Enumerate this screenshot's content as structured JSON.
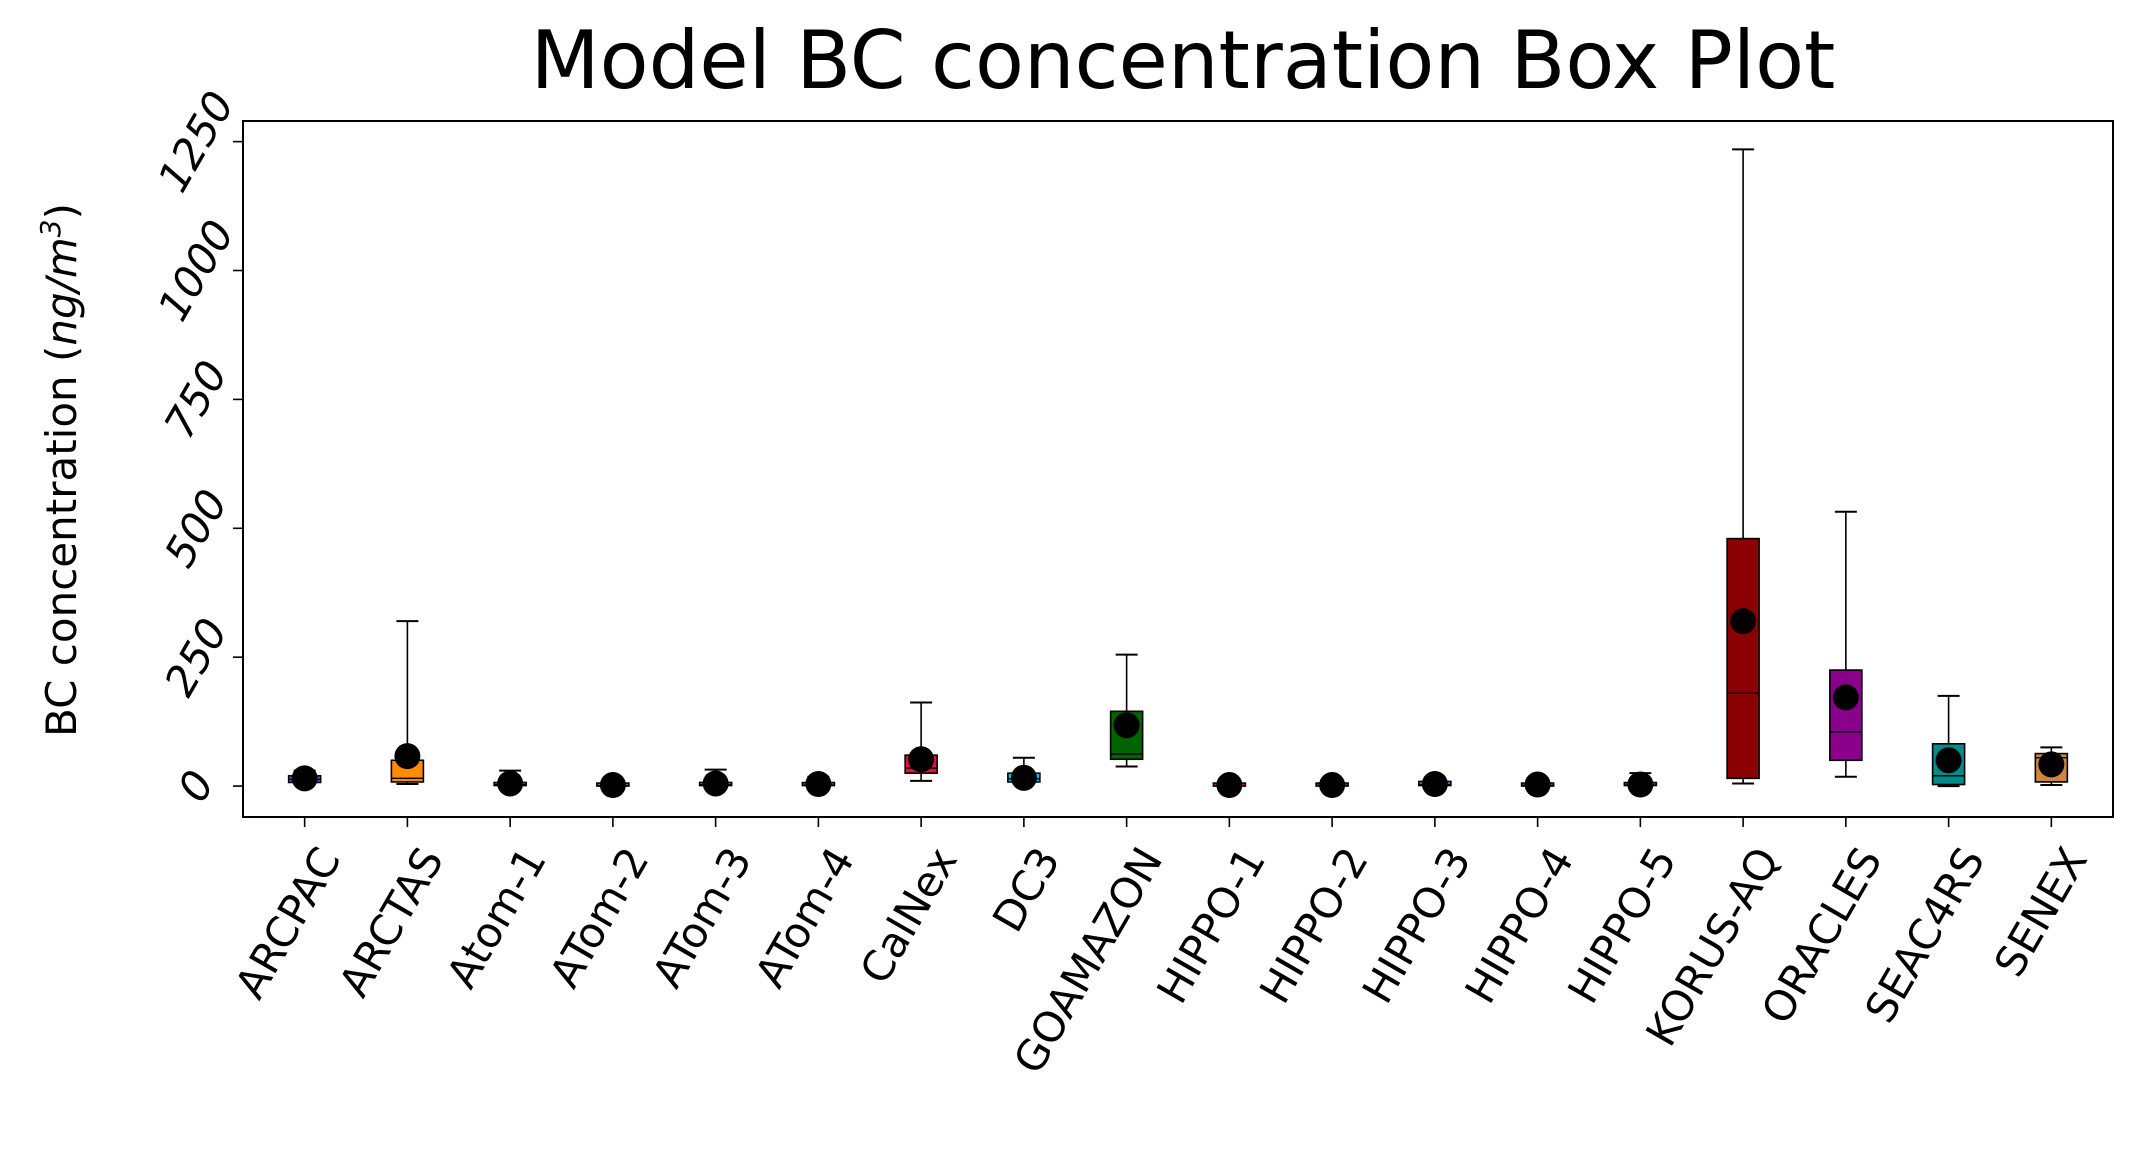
{
  "chart_data": {
    "type": "box",
    "title": "Model BC concentration Box Plot",
    "xlabel": "",
    "ylabel": "BC concentration (ng/m³)",
    "ylabel_parts": {
      "text": "BC concentration (",
      "unit_main": "ng/m",
      "unit_sup": "3",
      "close": ")"
    },
    "ylim": [
      -60,
      1290
    ],
    "yticks": [
      0,
      250,
      500,
      750,
      1000,
      1250
    ],
    "ytick_labels": [
      "0",
      "250",
      "500",
      "750",
      "1000",
      "1250"
    ],
    "grid": false,
    "categories": [
      "ARCPAC",
      "ARCTAS",
      "Atom-1",
      "ATom-2",
      "ATom-3",
      "ATom-4",
      "CalNex",
      "DC3",
      "GOAMAZON",
      "HIPPO-1",
      "HIPPO-2",
      "HIPPO-3",
      "HIPPO-4",
      "HIPPO-5",
      "KORUS-AQ",
      "ORACLES",
      "SEAC4RS",
      "SENEX"
    ],
    "boxes": [
      {
        "category": "ARCPAC",
        "whislo": 4,
        "q1": 7,
        "med": 13,
        "q3": 20,
        "whishi": 30,
        "mean": 15,
        "color": "#4169e1"
      },
      {
        "category": "ARCTAS",
        "whislo": 4,
        "q1": 8,
        "med": 15,
        "q3": 50,
        "whishi": 320,
        "mean": 58,
        "color": "#ff8c00"
      },
      {
        "category": "Atom-1",
        "whislo": 0,
        "q1": 1,
        "med": 3,
        "q3": 7,
        "whishi": 30,
        "mean": 5,
        "color": "#20b2aa"
      },
      {
        "category": "ATom-2",
        "whislo": 0,
        "q1": 0,
        "med": 1,
        "q3": 3,
        "whishi": 8,
        "mean": 2,
        "color": "#9370db"
      },
      {
        "category": "ATom-3",
        "whislo": 0,
        "q1": 1,
        "med": 3,
        "q3": 7,
        "whishi": 32,
        "mean": 5,
        "color": "#cd853f"
      },
      {
        "category": "ATom-4",
        "whislo": 0,
        "q1": 1,
        "med": 2,
        "q3": 6,
        "whishi": 18,
        "mean": 4,
        "color": "#808000"
      },
      {
        "category": "CalNex",
        "whislo": 10,
        "q1": 25,
        "med": 35,
        "q3": 60,
        "whishi": 162,
        "mean": 52,
        "color": "#dc143c"
      },
      {
        "category": "DC3",
        "whislo": 5,
        "q1": 8,
        "med": 14,
        "q3": 25,
        "whishi": 55,
        "mean": 16,
        "color": "#00bfff"
      },
      {
        "category": "GOAMAZON",
        "whislo": 38,
        "q1": 52,
        "med": 62,
        "q3": 145,
        "whishi": 255,
        "mean": 118,
        "color": "#006400"
      },
      {
        "category": "HIPPO-1",
        "whislo": 0,
        "q1": 0,
        "med": 1,
        "q3": 3,
        "whishi": 14,
        "mean": 2,
        "color": "#ff1493"
      },
      {
        "category": "HIPPO-2",
        "whislo": 0,
        "q1": 0,
        "med": 1,
        "q3": 3,
        "whishi": 10,
        "mean": 2,
        "color": "#8b4513"
      },
      {
        "category": "HIPPO-3",
        "whislo": 0,
        "q1": 1,
        "med": 3,
        "q3": 9,
        "whishi": 16,
        "mean": 4,
        "color": "#1e90ff"
      },
      {
        "category": "HIPPO-4",
        "whislo": 0,
        "q1": 0,
        "med": 2,
        "q3": 4,
        "whishi": 12,
        "mean": 3,
        "color": "#ffd700"
      },
      {
        "category": "HIPPO-5",
        "whislo": 0,
        "q1": 1,
        "med": 2,
        "q3": 5,
        "whishi": 25,
        "mean": 3,
        "color": "#2e8b57"
      },
      {
        "category": "KORUS-AQ",
        "whislo": 5,
        "q1": 15,
        "med": 180,
        "q3": 480,
        "whishi": 1235,
        "mean": 320,
        "color": "#8b0000"
      },
      {
        "category": "ORACLES",
        "whislo": 18,
        "q1": 50,
        "med": 105,
        "q3": 225,
        "whishi": 532,
        "mean": 172,
        "color": "#8b008b"
      },
      {
        "category": "SEAC4RS",
        "whislo": 0,
        "q1": 3,
        "med": 20,
        "q3": 82,
        "whishi": 175,
        "mean": 50,
        "color": "#008b8b"
      },
      {
        "category": "SENEX",
        "whislo": 2,
        "q1": 8,
        "med": 55,
        "q3": 63,
        "whishi": 75,
        "mean": 42,
        "color": "#cd853f"
      }
    ]
  }
}
